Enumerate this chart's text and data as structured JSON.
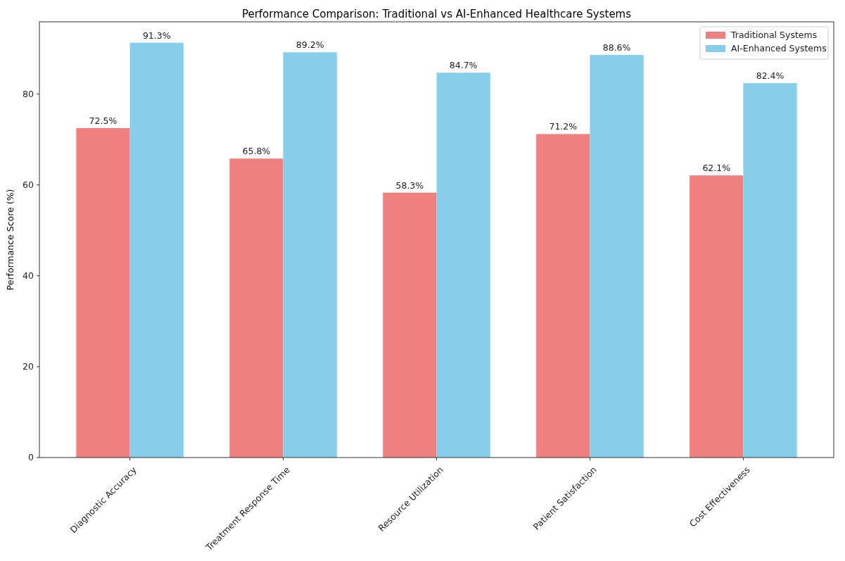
{
  "chart_data": {
    "type": "bar",
    "title": "Performance Comparison: Traditional vs AI-Enhanced Healthcare Systems",
    "ylabel": "Performance Score (%)",
    "categories": [
      "Diagnostic Accuracy",
      "Treatment Response Time",
      "Resource Utilization",
      "Patient Satisfaction",
      "Cost Effectiveness"
    ],
    "series": [
      {
        "name": "Traditional Systems",
        "color": "#f08080",
        "values": [
          72.5,
          65.8,
          58.3,
          71.2,
          62.1
        ],
        "value_labels": [
          "72.5%",
          "65.8%",
          "58.3%",
          "71.2%",
          "62.1%"
        ]
      },
      {
        "name": "AI-Enhanced Systems",
        "color": "#87ceeb",
        "values": [
          91.3,
          89.2,
          84.7,
          88.6,
          82.4
        ],
        "value_labels": [
          "91.3%",
          "89.2%",
          "84.7%",
          "88.6%",
          "82.4%"
        ]
      }
    ],
    "ylim": [
      0,
      95.9
    ],
    "yticks": [
      0,
      20,
      40,
      60,
      80
    ],
    "grid": false,
    "legend": "top right"
  }
}
